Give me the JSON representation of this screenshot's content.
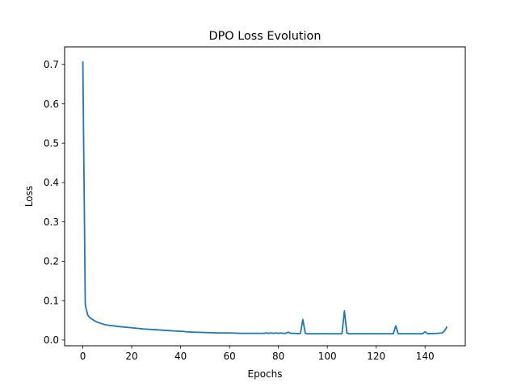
{
  "chart_data": {
    "type": "line",
    "title": "DPO Loss Evolution",
    "xlabel": "Epochs",
    "ylabel": "Loss",
    "xlim": [
      -7.45,
      156.45
    ],
    "ylim": [
      -0.0146,
      0.7446
    ],
    "xticks": [
      0,
      20,
      40,
      60,
      80,
      100,
      120,
      140
    ],
    "yticks": [
      0.0,
      0.1,
      0.2,
      0.3,
      0.4,
      0.5,
      0.6,
      0.7
    ],
    "xtick_labels": [
      "0",
      "20",
      "40",
      "60",
      "80",
      "100",
      "120",
      "140"
    ],
    "ytick_labels": [
      "0.0",
      "0.1",
      "0.2",
      "0.3",
      "0.4",
      "0.5",
      "0.6",
      "0.7"
    ],
    "grid": false,
    "legend": "none",
    "series": [
      {
        "color": "#1f77b4",
        "x": [
          0,
          1,
          2,
          3,
          4,
          5,
          6,
          7,
          8,
          9,
          10,
          15,
          20,
          25,
          30,
          35,
          40,
          41,
          42,
          45,
          50,
          55,
          60,
          65,
          70,
          72,
          74,
          75,
          76,
          77,
          78,
          79,
          80,
          81,
          82,
          83,
          84,
          85,
          86,
          87,
          88,
          89,
          90,
          91,
          92,
          95,
          100,
          105,
          106,
          107,
          108,
          109,
          110,
          115,
          120,
          125,
          126,
          127,
          128,
          129,
          130,
          135,
          139,
          140,
          141,
          145,
          147,
          148,
          149
        ],
        "y": [
          0.708,
          0.09,
          0.063,
          0.056,
          0.052,
          0.048,
          0.045,
          0.043,
          0.041,
          0.039,
          0.038,
          0.034,
          0.031,
          0.028,
          0.026,
          0.024,
          0.022,
          0.022,
          0.021,
          0.02,
          0.019,
          0.018,
          0.018,
          0.017,
          0.017,
          0.017,
          0.017,
          0.018,
          0.017,
          0.018,
          0.017,
          0.018,
          0.017,
          0.018,
          0.017,
          0.017,
          0.02,
          0.017,
          0.017,
          0.017,
          0.016,
          0.017,
          0.052,
          0.017,
          0.016,
          0.016,
          0.016,
          0.016,
          0.016,
          0.074,
          0.018,
          0.016,
          0.016,
          0.016,
          0.016,
          0.016,
          0.016,
          0.016,
          0.036,
          0.016,
          0.016,
          0.016,
          0.016,
          0.021,
          0.016,
          0.017,
          0.018,
          0.024,
          0.034
        ]
      }
    ]
  }
}
